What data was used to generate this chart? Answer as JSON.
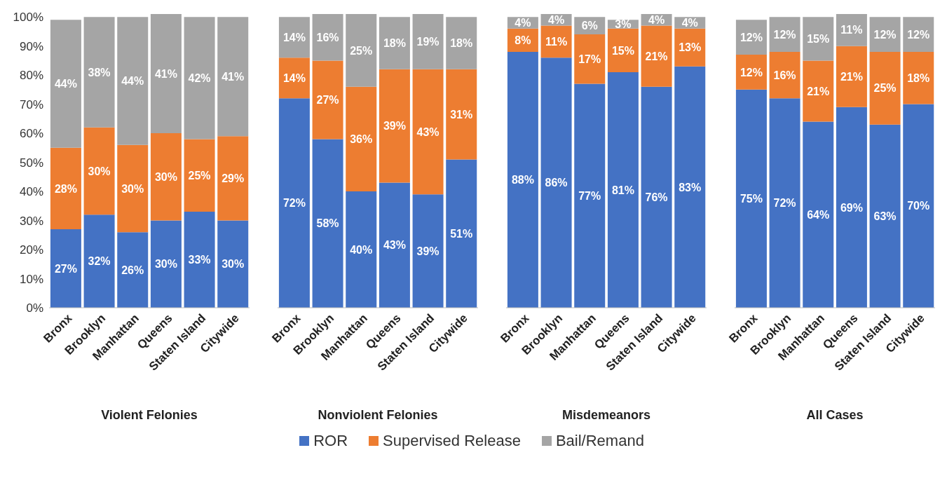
{
  "chart_data": [
    {
      "type": "bar",
      "stacked": true,
      "xlabel": "Violent Felonies",
      "categories": [
        "Bronx",
        "Brooklyn",
        "Manhattan",
        "Queens",
        "Staten Island",
        "Citywide"
      ],
      "ylim": [
        0,
        101
      ],
      "yticks": [
        {
          "value": 0,
          "label": "0%"
        },
        {
          "value": 10,
          "label": "10%"
        },
        {
          "value": 20,
          "label": "20%"
        },
        {
          "value": 30,
          "label": "30%"
        },
        {
          "value": 40,
          "label": "40%"
        },
        {
          "value": 50,
          "label": "50%"
        },
        {
          "value": 60,
          "label": "60%"
        },
        {
          "value": 70,
          "label": "70%"
        },
        {
          "value": 80,
          "label": "80%"
        },
        {
          "value": 90,
          "label": "90%"
        },
        {
          "value": 100,
          "label": "100%"
        }
      ],
      "legend": "bottom",
      "series": [
        {
          "name": "ROR",
          "color": "#4472c4",
          "values": [
            27,
            32,
            26,
            30,
            33,
            30
          ],
          "value_labels": [
            "27%",
            "32%",
            "26%",
            "30%",
            "33%",
            "30%"
          ]
        },
        {
          "name": "Supervised Release",
          "color": "#ed7d31",
          "values": [
            28,
            30,
            30,
            30,
            25,
            29
          ],
          "value_labels": [
            "28%",
            "30%",
            "30%",
            "30%",
            "25%",
            "29%"
          ]
        },
        {
          "name": "Bail/Remand",
          "color": "#a5a5a5",
          "values": [
            44,
            38,
            44,
            41,
            42,
            41
          ],
          "value_labels": [
            "44%",
            "38%",
            "44%",
            "41%",
            "42%",
            "41%"
          ]
        }
      ]
    },
    {
      "type": "bar",
      "stacked": true,
      "xlabel": "Nonviolent Felonies",
      "categories": [
        "Bronx",
        "Brooklyn",
        "Manhattan",
        "Queens",
        "Staten Island",
        "Citywide"
      ],
      "ylim": [
        0,
        101
      ],
      "tick_labels": "x",
      "series": [
        {
          "color": "#4472c4",
          "values": [
            72,
            58,
            40,
            43,
            39,
            51
          ],
          "value_labels": [
            "72%",
            "58%",
            "40%",
            "43%",
            "39%",
            "51%"
          ]
        },
        {
          "color": "#ed7d31",
          "values": [
            14,
            27,
            36,
            39,
            43,
            31
          ],
          "value_labels": [
            "14%",
            "27%",
            "36%",
            "39%",
            "43%",
            "31%"
          ]
        },
        {
          "color": "#a5a5a5",
          "values": [
            14,
            16,
            25,
            18,
            19,
            18
          ],
          "value_labels": [
            "14%",
            "16%",
            "25%",
            "18%",
            "19%",
            "18%"
          ]
        }
      ]
    },
    {
      "type": "bar",
      "stacked": true,
      "xlabel": "Misdemeanors",
      "categories": [
        "Bronx",
        "Brooklyn",
        "Manhattan",
        "Queens",
        "Staten Island",
        "Citywide"
      ],
      "ylim": [
        0,
        101
      ],
      "tick_labels": "x",
      "series": [
        {
          "color": "#4472c4",
          "values": [
            88,
            86,
            77,
            81,
            76,
            83
          ],
          "value_labels": [
            "88%",
            "86%",
            "77%",
            "81%",
            "76%",
            "83%"
          ]
        },
        {
          "color": "#ed7d31",
          "values": [
            8,
            11,
            17,
            15,
            21,
            13
          ],
          "value_labels": [
            "8%",
            "11%",
            "17%",
            "15%",
            "21%",
            "13%"
          ]
        },
        {
          "color": "#a5a5a5",
          "values": [
            4,
            4,
            6,
            3,
            4,
            4
          ],
          "value_labels": [
            "4%",
            "4%",
            "6%",
            "3%",
            "4%",
            "4%"
          ]
        }
      ]
    },
    {
      "type": "bar",
      "stacked": true,
      "xlabel": "All Cases",
      "categories": [
        "Bronx",
        "Brooklyn",
        "Manhattan",
        "Queens",
        "Staten Island",
        "Citywide"
      ],
      "ylim": [
        0,
        101
      ],
      "tick_labels": "x",
      "series": [
        {
          "color": "#4472c4",
          "values": [
            75,
            72,
            64,
            69,
            63,
            70
          ],
          "value_labels": [
            "75%",
            "72%",
            "64%",
            "69%",
            "63%",
            "70%"
          ]
        },
        {
          "color": "#ed7d31",
          "values": [
            12,
            16,
            21,
            21,
            25,
            18
          ],
          "value_labels": [
            "12%",
            "16%",
            "21%",
            "21%",
            "25%",
            "18%"
          ]
        },
        {
          "color": "#a5a5a5",
          "values": [
            12,
            12,
            15,
            11,
            12,
            12
          ],
          "value_labels": [
            "12%",
            "12%",
            "15%",
            "11%",
            "12%",
            "12%"
          ]
        }
      ]
    }
  ]
}
